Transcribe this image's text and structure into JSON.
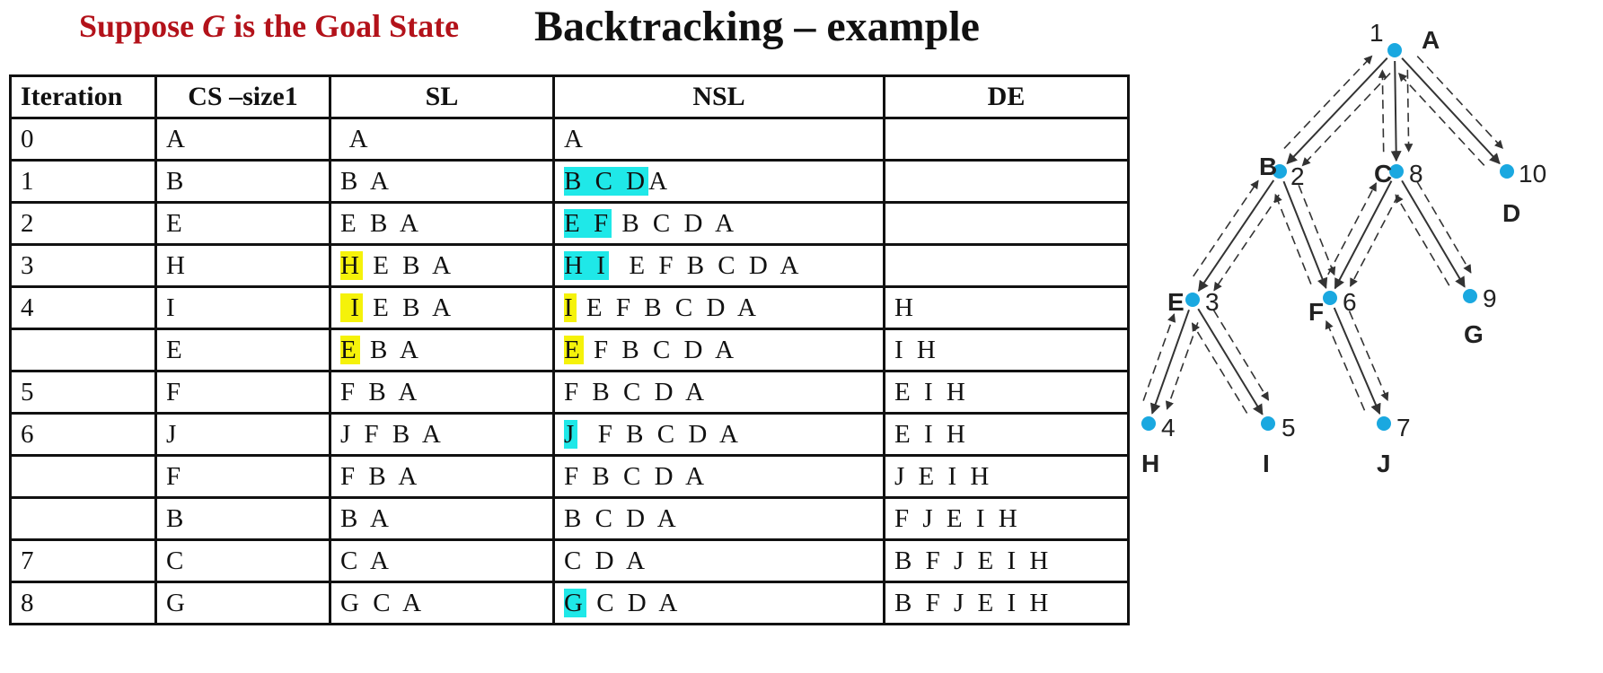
{
  "subtitle": {
    "pre": "Suppose ",
    "goal": "G",
    "post": " is the Goal State"
  },
  "title": "Backtracking – example",
  "table": {
    "headers": [
      "Iteration",
      "CS –size1",
      "SL",
      "NSL",
      "DE"
    ],
    "rows": [
      {
        "it": "0",
        "cs": "A",
        "sl": [
          {
            "t": " A"
          }
        ],
        "nsl": [
          {
            "t": "A"
          }
        ],
        "de": ""
      },
      {
        "it": "1",
        "cs": "B",
        "sl": [
          {
            "t": "B A"
          }
        ],
        "nsl": [
          {
            "t": "B C D",
            "h": "cyan"
          },
          {
            "t": "A"
          }
        ],
        "de": ""
      },
      {
        "it": "2",
        "cs": "E",
        "sl": [
          {
            "t": "E B A"
          }
        ],
        "nsl": [
          {
            "t": "E F",
            "h": "cyan"
          },
          {
            "t": " B C D A"
          }
        ],
        "de": ""
      },
      {
        "it": "3",
        "cs": "H",
        "sl": [
          {
            "t": "H",
            "h": "yellow"
          },
          {
            "t": " E B A"
          }
        ],
        "nsl": [
          {
            "t": "H I",
            "h": "cyan"
          },
          {
            "t": "  E F B C D A"
          }
        ],
        "de": ""
      },
      {
        "it": "4",
        "cs": "I",
        "sl": [
          {
            "t": " I",
            "h": "yellow"
          },
          {
            "t": " E B A"
          }
        ],
        "nsl": [
          {
            "t": "I",
            "h": "yellow"
          },
          {
            "t": " E F B C D A"
          }
        ],
        "de": "H"
      },
      {
        "it": "",
        "cs": "E",
        "sl": [
          {
            "t": "E",
            "h": "yellow"
          },
          {
            "t": " B A"
          }
        ],
        "nsl": [
          {
            "t": "E",
            "h": "yellow"
          },
          {
            "t": " F B C D A"
          }
        ],
        "de": "I H"
      },
      {
        "it": "5",
        "cs": "F",
        "sl": [
          {
            "t": "F B A"
          }
        ],
        "nsl": [
          {
            "t": "F B C D A"
          }
        ],
        "de": "E I H"
      },
      {
        "it": "6",
        "cs": "J",
        "sl": [
          {
            "t": "J F B A"
          }
        ],
        "nsl": [
          {
            "t": "J",
            "h": "cyan"
          },
          {
            "t": "  F B C D A"
          }
        ],
        "de": "E I H"
      },
      {
        "it": "",
        "cs": "F",
        "sl": [
          {
            "t": "F B A"
          }
        ],
        "nsl": [
          {
            "t": "F B C D A"
          }
        ],
        "de": "J E I H"
      },
      {
        "it": "",
        "cs": "B",
        "sl": [
          {
            "t": "B A"
          }
        ],
        "nsl": [
          {
            "t": "B C D A"
          }
        ],
        "de": "F J E I H"
      },
      {
        "it": "7",
        "cs": "C",
        "sl": [
          {
            "t": "C A"
          }
        ],
        "nsl": [
          {
            "t": "C D A"
          }
        ],
        "de": "B F J E I H"
      },
      {
        "it": "8",
        "cs": "G",
        "sl": [
          {
            "t": "G C A"
          }
        ],
        "nsl": [
          {
            "t": "G",
            "h": "cyan"
          },
          {
            "t": " C D A"
          }
        ],
        "de": "B F J E I H"
      }
    ]
  },
  "tree": {
    "node_color": "#1aa8e0",
    "nodes": [
      {
        "id": "A",
        "order": "1"
      },
      {
        "id": "B",
        "order": "2"
      },
      {
        "id": "C",
        "order": "8"
      },
      {
        "id": "D",
        "order": "10"
      },
      {
        "id": "E",
        "order": "3"
      },
      {
        "id": "F",
        "order": "6"
      },
      {
        "id": "G",
        "order": "9"
      },
      {
        "id": "H",
        "order": "4"
      },
      {
        "id": "I",
        "order": "5"
      },
      {
        "id": "J",
        "order": "7"
      }
    ],
    "edges": [
      [
        "A",
        "B"
      ],
      [
        "A",
        "C"
      ],
      [
        "A",
        "D"
      ],
      [
        "B",
        "E"
      ],
      [
        "B",
        "F"
      ],
      [
        "C",
        "F"
      ],
      [
        "C",
        "G"
      ],
      [
        "E",
        "H"
      ],
      [
        "E",
        "I"
      ],
      [
        "F",
        "J"
      ]
    ]
  }
}
